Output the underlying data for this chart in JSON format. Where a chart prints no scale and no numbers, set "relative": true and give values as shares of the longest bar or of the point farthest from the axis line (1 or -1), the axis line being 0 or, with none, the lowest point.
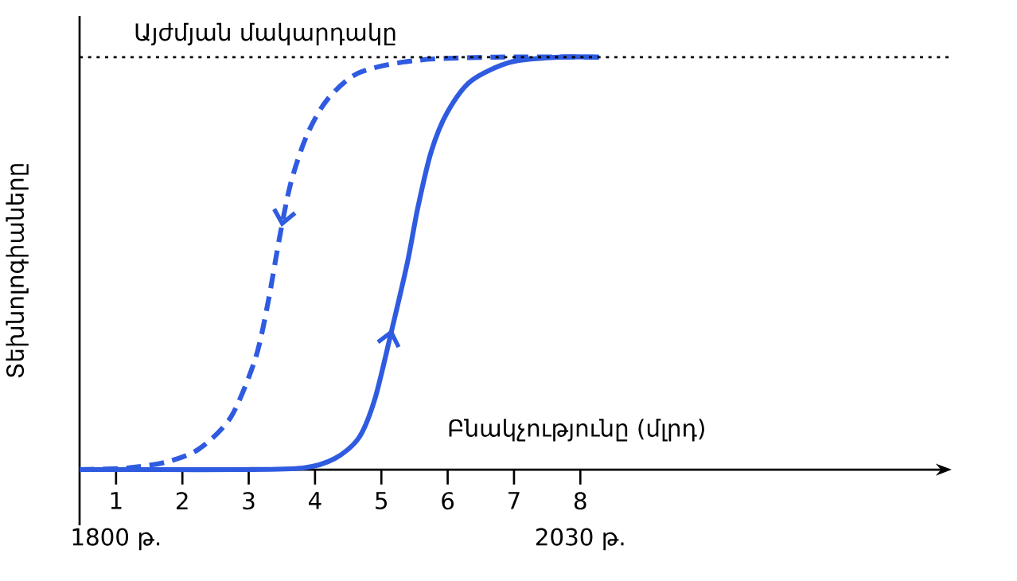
{
  "chart_data": {
    "type": "line",
    "relative": true,
    "xlabel": "Բնակչությունը (մլրդ)",
    "ylabel": "Տեխնոլոգիաները",
    "xlim": [
      0.45,
      13.6
    ],
    "xticks": [
      1,
      2,
      3,
      4,
      5,
      6,
      7,
      8
    ],
    "tick_labels": "x",
    "grid": false,
    "series": [
      {
        "color": "#2f5be0",
        "line_style": "dashed",
        "x": [
          0.45,
          1.17,
          1.77,
          2.25,
          2.73,
          3.1,
          3.29,
          3.46,
          3.63,
          3.87,
          4.18,
          4.66,
          5.51,
          6.71,
          8.28
        ],
        "values": [
          0,
          0.004,
          0.019,
          0.05,
          0.127,
          0.269,
          0.404,
          0.558,
          0.692,
          0.808,
          0.896,
          0.962,
          0.992,
          1,
          1
        ]
      },
      {
        "color": "#2f5be0",
        "line_style": "solid",
        "x": [
          0.45,
          1.65,
          2.86,
          3.82,
          4.3,
          4.66,
          4.9,
          5.14,
          5.39,
          5.55,
          5.75,
          5.99,
          6.35,
          6.95,
          7.67,
          8.28
        ],
        "values": [
          0,
          0,
          0,
          0.004,
          0.027,
          0.077,
          0.17,
          0.327,
          0.5,
          0.635,
          0.77,
          0.865,
          0.942,
          0.988,
          1,
          1
        ]
      }
    ],
    "ref_lines": [
      {
        "axis": "y",
        "value": 1,
        "label": "Այժմյան մակարդակը",
        "line_style": "dotted",
        "color": "#000000"
      }
    ],
    "annotations": [
      "1800 թ.",
      "2030 թ."
    ]
  }
}
